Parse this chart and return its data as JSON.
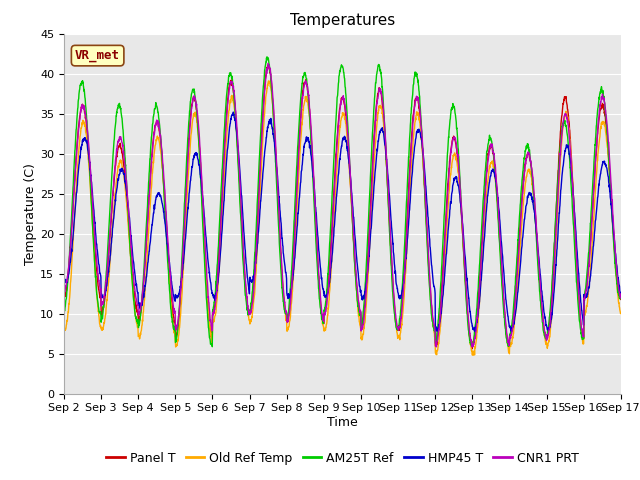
{
  "title": "Temperatures",
  "xlabel": "Time",
  "ylabel": "Temperature (C)",
  "ylim": [
    0,
    45
  ],
  "n_days": 15,
  "xtick_labels": [
    "Sep 2",
    "Sep 3",
    "Sep 4",
    "Sep 5",
    "Sep 6",
    "Sep 7",
    "Sep 8",
    "Sep 9",
    "Sep 10",
    "Sep 11",
    "Sep 12",
    "Sep 13",
    "Sep 14",
    "Sep 15",
    "Sep 16",
    "Sep 17"
  ],
  "annotation_text": "VR_met",
  "plot_bg_color": "#e8e8e8",
  "fig_bg_color": "#ffffff",
  "series": [
    {
      "label": "Panel T",
      "color": "#cc0000",
      "lw": 1.0
    },
    {
      "label": "Old Ref Temp",
      "color": "#ffaa00",
      "lw": 1.0
    },
    {
      "label": "AM25T Ref",
      "color": "#00cc00",
      "lw": 1.0
    },
    {
      "label": "HMP45 T",
      "color": "#0000cc",
      "lw": 1.0
    },
    {
      "label": "CNR1 PRT",
      "color": "#bb00bb",
      "lw": 1.0
    }
  ],
  "day_maxes_panel": [
    36,
    31,
    34,
    37,
    39,
    41,
    39,
    37,
    38,
    37,
    32,
    31,
    30,
    37,
    36
  ],
  "day_mins_panel": [
    12,
    10,
    9,
    7,
    10,
    10,
    9,
    10,
    8,
    8,
    6,
    6,
    7,
    7,
    12
  ],
  "day_maxes_orange": [
    34,
    29,
    32,
    35,
    37,
    39,
    37,
    35,
    36,
    35,
    30,
    29,
    28,
    35,
    34
  ],
  "day_mins_orange": [
    8,
    8,
    7,
    6,
    9,
    9,
    8,
    8,
    7,
    7,
    5,
    5,
    6,
    6,
    10
  ],
  "day_maxes_green": [
    39,
    36,
    36,
    38,
    40,
    42,
    40,
    41,
    41,
    40,
    36,
    32,
    31,
    34,
    38
  ],
  "day_mins_green": [
    10,
    9,
    8,
    6,
    10,
    10,
    9,
    10,
    8,
    8,
    6,
    6,
    7,
    7,
    12
  ],
  "day_maxes_blue": [
    32,
    28,
    25,
    30,
    35,
    34,
    32,
    32,
    33,
    33,
    27,
    28,
    25,
    31,
    29
  ],
  "day_mins_blue": [
    14,
    12,
    11,
    12,
    12,
    14,
    12,
    12,
    12,
    12,
    8,
    8,
    8,
    8,
    12
  ],
  "day_maxes_purple": [
    36,
    32,
    34,
    37,
    39,
    41,
    39,
    37,
    38,
    37,
    32,
    31,
    30,
    35,
    37
  ],
  "day_mins_purple": [
    13,
    11,
    10,
    8,
    10,
    10,
    9,
    10,
    8,
    8,
    6,
    6,
    7,
    7,
    12
  ],
  "title_fontsize": 11,
  "label_fontsize": 9,
  "tick_fontsize": 8,
  "legend_fontsize": 9
}
